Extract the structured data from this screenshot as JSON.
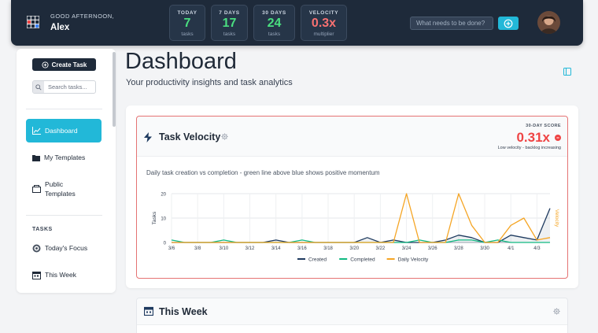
{
  "header": {
    "greeting": "GOOD AFTERNOON,",
    "user_name": "Alex",
    "stats": [
      {
        "label": "TODAY",
        "value": "7",
        "sub": "tasks",
        "color": "#4ade80"
      },
      {
        "label": "7 DAYS",
        "value": "17",
        "sub": "tasks",
        "color": "#4ade80"
      },
      {
        "label": "30 DAYS",
        "value": "24",
        "sub": "tasks",
        "color": "#4ade80"
      },
      {
        "label": "VELOCITY",
        "value": "0.3x",
        "sub": "multiplier",
        "color": "#f87171"
      }
    ],
    "quick_add_placeholder": "What needs to be done?"
  },
  "sidebar": {
    "create_label": "Create Task",
    "search_placeholder": "Search tasks...",
    "items": [
      {
        "label": "Dashboard",
        "icon": "chart-line-icon",
        "active": true
      },
      {
        "label": "My Templates",
        "icon": "folder-icon",
        "active": false
      },
      {
        "label": "Public",
        "label2": "Templates",
        "icon": "box-icon",
        "active": false
      }
    ],
    "section_title": "TASKS",
    "task_items": [
      {
        "label": "Today's Focus",
        "icon": "target-icon"
      },
      {
        "label": "This Week",
        "icon": "calendar-icon"
      }
    ]
  },
  "main": {
    "title": "Dashboard",
    "subtitle": "Your productivity insights and task analytics"
  },
  "velocity": {
    "title": "Task Velocity",
    "score_label": "30-DAY SCORE",
    "score_value": "0.31x",
    "score_desc": "Low velocity - backlog increasing",
    "description": "Daily task creation vs completion - green line above blue shows positive momentum",
    "accent": "#ef4444"
  },
  "chart_data": {
    "type": "line",
    "x": [
      "3/6",
      "3/7",
      "3/8",
      "3/9",
      "3/10",
      "3/11",
      "3/12",
      "3/13",
      "3/14",
      "3/15",
      "3/16",
      "3/17",
      "3/18",
      "3/19",
      "3/20",
      "3/21",
      "3/22",
      "3/23",
      "3/24",
      "3/25",
      "3/26",
      "3/27",
      "3/28",
      "3/29",
      "3/30",
      "3/31",
      "4/1",
      "4/2",
      "4/3",
      "4/4"
    ],
    "xticks": [
      "3/6",
      "3/8",
      "3/10",
      "3/12",
      "3/14",
      "3/16",
      "3/18",
      "3/20",
      "3/22",
      "3/24",
      "3/26",
      "3/28",
      "3/30",
      "4/1",
      "4/3"
    ],
    "ylabel": "Tasks",
    "y2label": "Velocity",
    "ylim": [
      0,
      20
    ],
    "yticks": [
      0,
      10,
      20
    ],
    "series": [
      {
        "name": "Created",
        "color": "#1e3a5f",
        "axis": "left",
        "values": [
          0,
          0,
          0,
          0,
          0,
          0,
          0,
          0,
          1,
          0,
          0,
          0,
          0,
          0,
          0,
          2,
          0,
          1,
          0,
          0,
          0,
          1,
          3,
          2,
          0,
          0,
          3,
          2,
          1,
          14
        ]
      },
      {
        "name": "Completed",
        "color": "#10b981",
        "axis": "left",
        "values": [
          1,
          0,
          0,
          0,
          1,
          0,
          0,
          0,
          0,
          0,
          1,
          0,
          0,
          0,
          0,
          0,
          0,
          0,
          0,
          1,
          0,
          0,
          1,
          1,
          0,
          1,
          0,
          0,
          0,
          0
        ]
      },
      {
        "name": "Daily Velocity",
        "color": "#f5a524",
        "axis": "right",
        "values": [
          0,
          0,
          0,
          0,
          0,
          0,
          0,
          0,
          0,
          0,
          0,
          0,
          0,
          0,
          0,
          0,
          0,
          0,
          20,
          0,
          0,
          0,
          20,
          7,
          0,
          0,
          7,
          10,
          1,
          2
        ]
      }
    ],
    "grid": true,
    "legend": "bottom"
  },
  "week": {
    "title": "This Week"
  }
}
